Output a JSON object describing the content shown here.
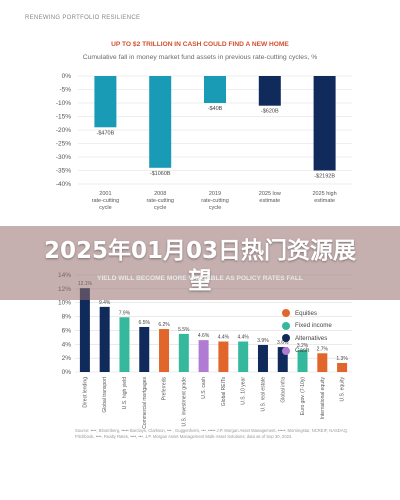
{
  "header": "RENEWING PORTFOLIO RESILIENCE",
  "banner_text": "2025年01月03日热门资源展望",
  "colors": {
    "teal": "#1a9bb5",
    "navy": "#102a5c",
    "orange": "#e0662b",
    "green": "#35b89c",
    "purple": "#b07bd3",
    "title_red": "#d34e2e"
  },
  "chart_data": [
    {
      "type": "bar",
      "title": "UP TO $2 TRILLION IN CASH COULD FIND A NEW HOME",
      "subtitle": "Cumulative fall in money market fund assets in previous rate-cutting cycles, %",
      "categories": [
        "2001 rate-cutting cycle",
        "2008 rate-cutting cycle",
        "2019 rate-cutting cycle",
        "2025 low estimate",
        "2025 high estimate"
      ],
      "values": [
        -19,
        -34,
        -10,
        -11,
        -35
      ],
      "data_labels": [
        "-$470B",
        "-$1060B",
        "-$40B",
        "-$620B",
        "-$2192B"
      ],
      "colors": [
        "#1a9bb5",
        "#1a9bb5",
        "#1a9bb5",
        "#102a5c",
        "#102a5c"
      ],
      "ylim": [
        -40,
        0
      ],
      "yticks": [
        "0%",
        "-5%",
        "-10%",
        "-15%",
        "-20%",
        "-25%",
        "-30%",
        "-35%",
        "-40%"
      ],
      "grid": true
    },
    {
      "type": "bar",
      "title": "YIELD WILL BECOME MORE VALUABLE AS POLICY RATES FALL",
      "categories": [
        "Direct lending",
        "Global transport",
        "U.S. high yield",
        "Commercial mortgages",
        "Preferreds",
        "U.S. investment grade",
        "U.S. cash",
        "Global REITs",
        "U.S. 10 year",
        "U.S. real estate",
        "Global infra",
        "Euro gov. (7-10y)",
        "International equity",
        "U.S. equity"
      ],
      "values": [
        12.1,
        9.4,
        7.9,
        6.5,
        6.2,
        5.5,
        4.6,
        4.4,
        4.4,
        3.9,
        3.6,
        3.2,
        2.7,
        1.3
      ],
      "data_labels": [
        "12.1%",
        "9.4%",
        "7.9%",
        "6.5%",
        "6.2%",
        "5.5%",
        "4.6%",
        "4.4%",
        "4.4%",
        "3.9%",
        "3.6%",
        "3.2%",
        "2.7%",
        "1.3%"
      ],
      "groups": [
        "Alternatives",
        "Alternatives",
        "Fixed income",
        "Alternatives",
        "Equities",
        "Fixed income",
        "Cash",
        "Equities",
        "Fixed income",
        "Alternatives",
        "Alternatives",
        "Fixed income",
        "Equities",
        "Equities"
      ],
      "ylim": [
        0,
        14
      ],
      "yticks": [
        "14%",
        "12%",
        "10%",
        "8%",
        "6%",
        "4%",
        "2%",
        "0%"
      ],
      "legend": [
        "Equities",
        "Fixed income",
        "Alternatives",
        "Cash"
      ],
      "legend_position": "top-right",
      "grid": true
    }
  ],
  "source_text": "Source: ••••, Bloomberg, ••••• Barclays, Clarkson, ••• , Guggenheim, •••, ••••• J.P. Morgan Asset Management, •••••, Morningstar, NCREIF, NASDAQ, Pitchbook, ••••, Realty Rates, ••••, •••. J.P. Morgan Asset Management Multi-Asset Solutions; data as of Sep 30, 2024."
}
